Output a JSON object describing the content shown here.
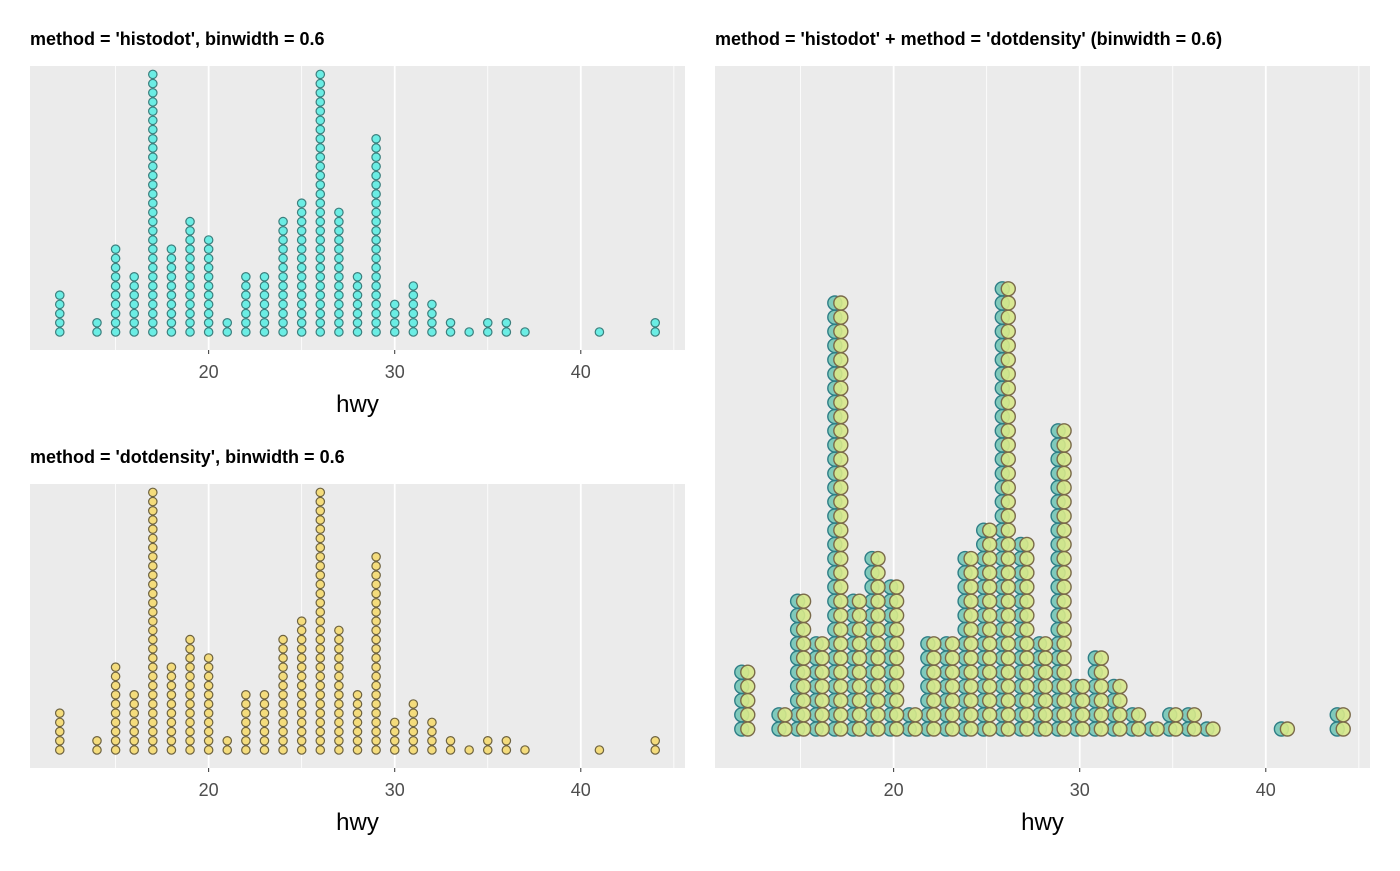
{
  "colors": {
    "panel_bg": "#EBEBEB",
    "grid": "#FFFFFF",
    "histodot_fill": "#6BEDE4",
    "histodot_stroke": "#3C7F7D",
    "dotdensity_fill": "#F4DC7C",
    "dotdensity_stroke": "#6E6340",
    "combined_histodot_fill": "#7AC8B8",
    "combined_histodot_stroke": "#2E7E86",
    "combined_dotdensity_fill": "#D7E88A",
    "combined_dotdensity_stroke": "#7A6A4A",
    "combined_shared_fill": "#C2E28A",
    "combined_shared_stroke": "#222222"
  },
  "chart_data": [
    {
      "type": "scatter",
      "plot": "dotplot",
      "title": "method = 'histodot', binwidth = 0.6",
      "xlabel": "hwy",
      "ylabel": "",
      "xlim": [
        10.4,
        45.6
      ],
      "x_ticks": [
        20,
        30,
        40
      ],
      "x_tick_labels": [
        "20",
        "30",
        "40"
      ],
      "grid": true,
      "series": [
        {
          "method": "histodot",
          "x": [
            12,
            14,
            15,
            16,
            17,
            18,
            19,
            20,
            21,
            22,
            23,
            24,
            25,
            26,
            27,
            28,
            29,
            30,
            31,
            32,
            33,
            34,
            35,
            36,
            37,
            41,
            44
          ],
          "counts": [
            5,
            2,
            10,
            7,
            31,
            10,
            13,
            11,
            2,
            7,
            7,
            13,
            15,
            32,
            14,
            7,
            22,
            4,
            6,
            4,
            2,
            1,
            2,
            2,
            1,
            1,
            2
          ]
        }
      ]
    },
    {
      "type": "scatter",
      "plot": "dotplot",
      "title": "method = 'dotdensity', binwidth = 0.6",
      "xlabel": "hwy",
      "ylabel": "",
      "xlim": [
        10.4,
        45.6
      ],
      "x_ticks": [
        20,
        30,
        40
      ],
      "x_tick_labels": [
        "20",
        "30",
        "40"
      ],
      "grid": true,
      "series": [
        {
          "method": "dotdensity",
          "x": [
            12,
            14,
            15,
            16,
            17,
            18,
            19,
            20,
            21,
            22,
            23,
            24,
            25,
            26,
            27,
            28,
            29,
            30,
            31,
            32,
            33,
            34,
            35,
            36,
            37,
            41,
            44
          ],
          "counts": [
            5,
            2,
            10,
            7,
            31,
            10,
            13,
            11,
            2,
            7,
            7,
            13,
            15,
            32,
            14,
            7,
            22,
            4,
            6,
            4,
            2,
            1,
            2,
            2,
            1,
            1,
            2
          ]
        }
      ]
    },
    {
      "type": "scatter",
      "plot": "dotplot",
      "title": "method = 'histodot' + method = 'dotdensity' (binwidth = 0.6)",
      "xlabel": "hwy",
      "ylabel": "",
      "xlim": [
        10.4,
        45.6
      ],
      "x_ticks": [
        20,
        30,
        40
      ],
      "x_tick_labels": [
        "20",
        "30",
        "40"
      ],
      "grid": true,
      "series": [
        {
          "method": "histodot",
          "x": [
            12,
            14,
            15,
            16,
            17,
            18,
            19,
            20,
            21,
            22,
            23,
            24,
            25,
            26,
            27,
            28,
            29,
            30,
            31,
            32,
            33,
            34,
            35,
            36,
            37,
            41,
            44
          ],
          "counts": [
            5,
            2,
            10,
            7,
            31,
            10,
            13,
            11,
            2,
            7,
            7,
            13,
            15,
            32,
            14,
            7,
            22,
            4,
            6,
            4,
            2,
            1,
            2,
            2,
            1,
            1,
            2
          ]
        },
        {
          "method": "dotdensity",
          "x": [
            12,
            14,
            15,
            16,
            17,
            18,
            19,
            20,
            21,
            22,
            23,
            24,
            25,
            26,
            27,
            28,
            29,
            30,
            31,
            32,
            33,
            34,
            35,
            36,
            37,
            41,
            44
          ],
          "counts": [
            5,
            2,
            10,
            7,
            31,
            10,
            13,
            11,
            2,
            7,
            7,
            13,
            15,
            32,
            14,
            7,
            22,
            4,
            6,
            4,
            2,
            1,
            2,
            2,
            1,
            1,
            2
          ]
        }
      ]
    }
  ]
}
